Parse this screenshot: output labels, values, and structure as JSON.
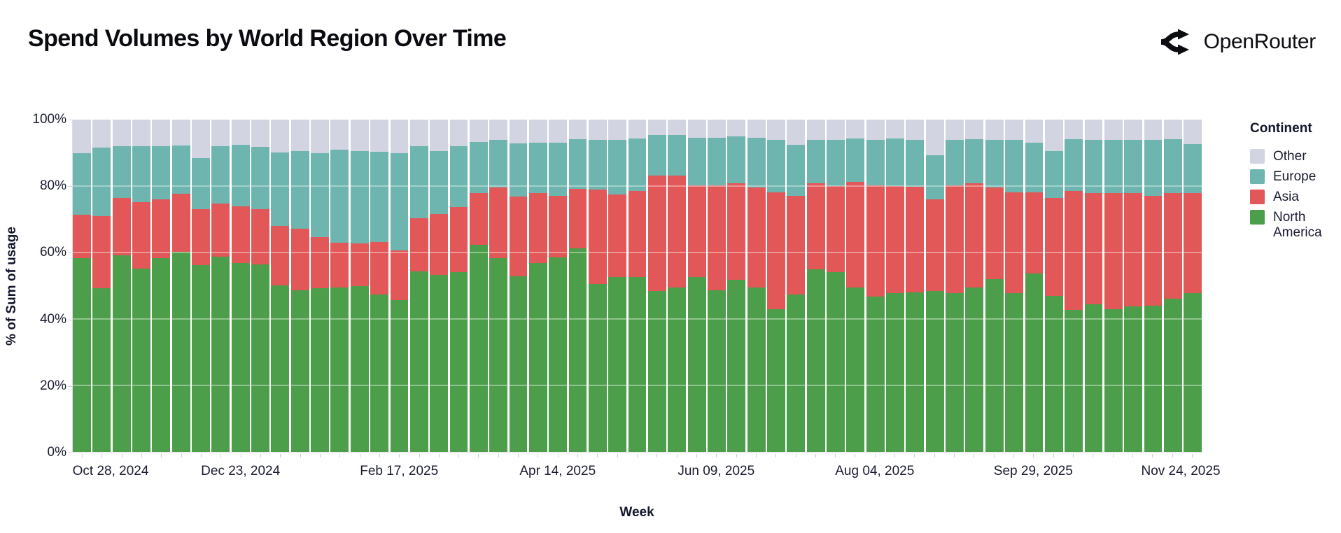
{
  "header": {
    "title": "Spend Volumes by World Region Over Time",
    "brand": "OpenRouter"
  },
  "legend": {
    "title": "Continent",
    "items": [
      {
        "label": "Other",
        "color": "#d2d5e1"
      },
      {
        "label": "Europe",
        "color": "#6db5ae"
      },
      {
        "label": "Asia",
        "color": "#e25757"
      },
      {
        "label": "North America",
        "color": "#4d9e4a"
      }
    ]
  },
  "chart_data": {
    "type": "bar",
    "stacked": true,
    "normalized_to_100pct": true,
    "title": "Spend Volumes by World Region Over Time",
    "xlabel": "Week",
    "ylabel": "% of Sum of usage",
    "ylim": [
      0,
      100
    ],
    "y_ticks": [
      "0%",
      "20%",
      "40%",
      "60%",
      "80%",
      "100%"
    ],
    "y_tick_values": [
      0,
      20,
      40,
      60,
      80,
      100
    ],
    "x_tick_labels": [
      "Oct 28, 2024",
      "Dec 23, 2024",
      "Feb 17, 2025",
      "Apr 14, 2025",
      "Jun 09, 2025",
      "Aug 04, 2025",
      "Sep 29, 2025",
      "Nov 24, 2025"
    ],
    "x_tick_label_indices": [
      0,
      8,
      16,
      24,
      32,
      40,
      48,
      56
    ],
    "legend_title": "Continent",
    "legend_position": "right",
    "grid": "horizontal-light",
    "categories": [
      "Oct 28, 2024",
      "Nov 04, 2024",
      "Nov 11, 2024",
      "Nov 18, 2024",
      "Nov 25, 2024",
      "Dec 02, 2024",
      "Dec 09, 2024",
      "Dec 16, 2024",
      "Dec 23, 2024",
      "Dec 30, 2024",
      "Jan 06, 2025",
      "Jan 13, 2025",
      "Jan 20, 2025",
      "Jan 27, 2025",
      "Feb 03, 2025",
      "Feb 10, 2025",
      "Feb 17, 2025",
      "Feb 24, 2025",
      "Mar 03, 2025",
      "Mar 10, 2025",
      "Mar 17, 2025",
      "Mar 24, 2025",
      "Mar 31, 2025",
      "Apr 07, 2025",
      "Apr 14, 2025",
      "Apr 21, 2025",
      "Apr 28, 2025",
      "May 05, 2025",
      "May 12, 2025",
      "May 19, 2025",
      "May 26, 2025",
      "Jun 02, 2025",
      "Jun 09, 2025",
      "Jun 16, 2025",
      "Jun 23, 2025",
      "Jun 30, 2025",
      "Jul 07, 2025",
      "Jul 14, 2025",
      "Jul 21, 2025",
      "Jul 28, 2025",
      "Aug 04, 2025",
      "Aug 11, 2025",
      "Aug 18, 2025",
      "Aug 25, 2025",
      "Sep 01, 2025",
      "Sep 08, 2025",
      "Sep 15, 2025",
      "Sep 22, 2025",
      "Sep 29, 2025",
      "Oct 06, 2025",
      "Oct 13, 2025",
      "Oct 20, 2025",
      "Oct 27, 2025",
      "Nov 03, 2025",
      "Nov 10, 2025",
      "Nov 17, 2025",
      "Nov 24, 2025"
    ],
    "series": [
      {
        "name": "North America",
        "color": "#4d9e4a",
        "values": [
          58.3,
          49.2,
          59.2,
          55.2,
          58.3,
          60.3,
          56.3,
          58.7,
          56.8,
          56.4,
          50.1,
          48.7,
          49.2,
          49.5,
          49.8,
          47.3,
          45.6,
          54.3,
          53.3,
          54.1,
          62.4,
          58.3,
          52.9,
          56.8,
          58.5,
          61.3,
          50.5,
          52.7,
          52.6,
          48.4,
          49.5,
          52.6,
          48.7,
          51.7,
          49.4,
          42.9,
          47.3,
          55.0,
          54.1,
          49.4,
          46.8,
          47.7,
          48.0,
          48.5,
          47.8,
          49.4,
          52.0,
          47.7,
          53.6,
          47.0,
          42.8,
          44.5,
          42.9,
          43.8,
          44.1,
          46.1,
          47.7
        ]
      },
      {
        "name": "Asia",
        "color": "#e25757",
        "values": [
          13.0,
          21.8,
          17.2,
          19.9,
          17.7,
          17.3,
          16.7,
          16.1,
          17.0,
          16.6,
          18.0,
          18.4,
          15.4,
          13.4,
          12.9,
          15.8,
          15.0,
          16.1,
          18.3,
          19.6,
          15.5,
          21.2,
          24.0,
          21.0,
          18.6,
          17.9,
          28.5,
          24.7,
          25.9,
          34.8,
          33.7,
          27.6,
          31.5,
          29.2,
          30.1,
          35.1,
          29.8,
          25.9,
          25.9,
          31.9,
          33.4,
          32.3,
          31.7,
          27.5,
          32.4,
          31.4,
          27.5,
          30.3,
          24.4,
          29.5,
          35.8,
          33.3,
          35.0,
          34.0,
          33.0,
          31.8,
          30.2
        ]
      },
      {
        "name": "Europe",
        "color": "#6db5ae",
        "values": [
          18.5,
          20.5,
          15.6,
          16.9,
          16.1,
          14.6,
          15.4,
          17.3,
          18.6,
          18.8,
          22.1,
          23.4,
          25.4,
          28.0,
          27.8,
          27.3,
          29.4,
          21.5,
          18.9,
          18.3,
          15.4,
          14.4,
          16.0,
          15.3,
          16.0,
          14.9,
          14.9,
          16.4,
          15.8,
          12.1,
          12.2,
          14.4,
          14.3,
          14.1,
          15.0,
          15.9,
          15.3,
          12.9,
          13.9,
          13.1,
          13.7,
          14.3,
          14.3,
          13.3,
          13.7,
          13.3,
          14.4,
          15.8,
          15.1,
          14.0,
          15.5,
          16.1,
          16.1,
          16.0,
          16.8,
          16.2,
          14.8
        ]
      },
      {
        "name": "Other",
        "color": "#d2d5e1",
        "values": [
          10.2,
          8.5,
          8.0,
          8.0,
          7.9,
          7.8,
          11.6,
          7.9,
          7.6,
          8.2,
          9.8,
          9.5,
          10.0,
          9.1,
          9.5,
          9.6,
          10.0,
          8.1,
          9.5,
          8.0,
          6.7,
          6.1,
          7.1,
          6.9,
          6.9,
          5.9,
          6.1,
          6.2,
          5.7,
          4.7,
          4.6,
          5.4,
          5.5,
          5.0,
          5.5,
          6.1,
          7.6,
          6.2,
          6.1,
          5.6,
          6.1,
          5.7,
          6.0,
          10.7,
          6.1,
          5.9,
          6.1,
          6.2,
          6.9,
          9.5,
          5.9,
          6.1,
          6.0,
          6.2,
          6.1,
          5.9,
          7.3
        ]
      }
    ]
  }
}
